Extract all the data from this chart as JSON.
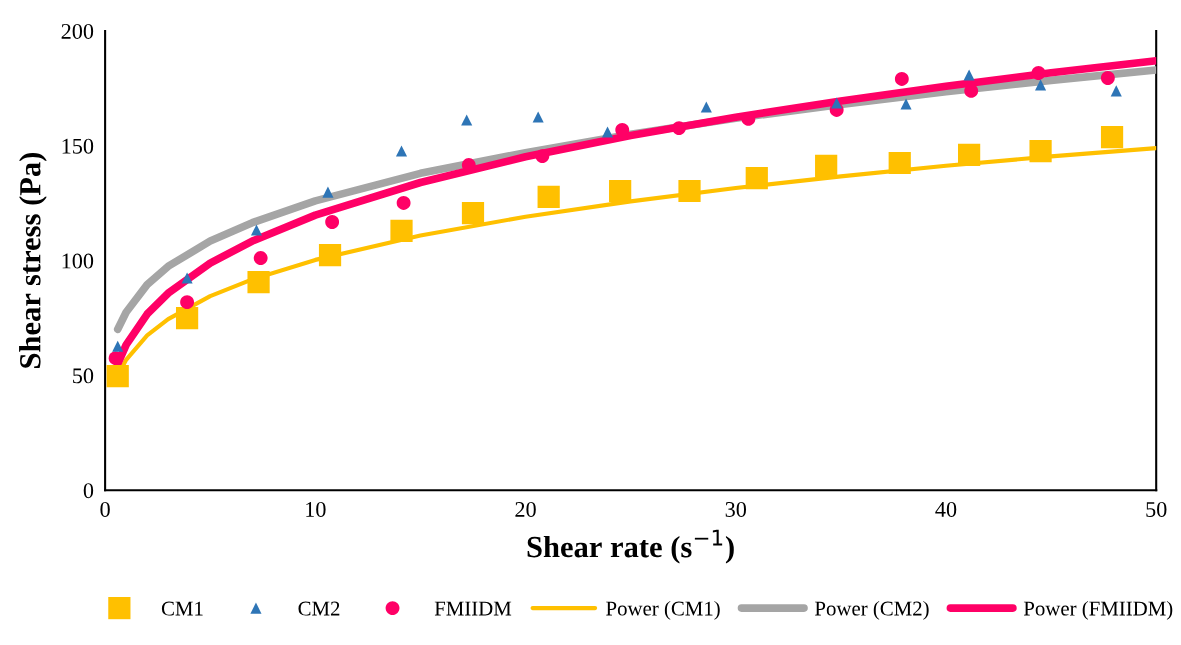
{
  "chart_data": {
    "type": "scatter",
    "xlabel": "Shear rate (s$^{−1}$)",
    "ylabel": "Shear stress (Pa)",
    "xlim": [
      0,
      50
    ],
    "xticks": [
      0,
      10,
      20,
      30,
      40,
      50
    ],
    "ylim": [
      0,
      200
    ],
    "yticks": [
      0,
      50,
      100,
      150,
      200
    ],
    "grid": false,
    "legend": "bottom",
    "series": [
      {
        "name": "CM1",
        "marker": "square",
        "color": "#ffc000",
        "x": [
          0.6,
          3.9,
          7.3,
          10.7,
          14.1,
          17.5,
          21.1,
          24.5,
          27.8,
          31.0,
          34.3,
          37.8,
          41.1,
          44.5,
          47.9
        ],
        "values": [
          49.7,
          74.9,
          90.6,
          102.4,
          112.9,
          120.7,
          127.7,
          130.3,
          130.3,
          135.9,
          141.2,
          142.5,
          146.0,
          147.7,
          153.8
        ]
      },
      {
        "name": "CM2",
        "marker": "triangle",
        "color": "#2e75b6",
        "x": [
          0.6,
          3.9,
          7.2,
          10.6,
          14.1,
          17.2,
          20.6,
          23.9,
          28.6,
          34.8,
          38.1,
          41.1,
          44.5,
          48.1
        ],
        "values": [
          62.7,
          92.4,
          113.3,
          129.8,
          147.7,
          161.2,
          162.5,
          156.0,
          166.9,
          168.6,
          168.2,
          180.8,
          176.5,
          173.9
        ]
      },
      {
        "name": "FMIIDM",
        "marker": "circle",
        "color": "#ff0066",
        "x": [
          0.5,
          3.9,
          7.4,
          10.8,
          14.2,
          17.3,
          20.8,
          24.6,
          27.3,
          30.6,
          34.8,
          37.9,
          41.2,
          44.4,
          47.7
        ],
        "values": [
          57.5,
          81.9,
          101.1,
          116.8,
          125.1,
          141.6,
          145.5,
          156.9,
          157.7,
          161.7,
          165.6,
          179.1,
          173.9,
          181.7,
          179.5
        ]
      },
      {
        "name": "Power (CM1)",
        "type": "line",
        "color": "#ffc000",
        "x": [
          0.6,
          1,
          2,
          3,
          5,
          7,
          10,
          15,
          20,
          25,
          30,
          35,
          40,
          45,
          50
        ],
        "values": [
          50.0,
          56.8,
          67.4,
          74.5,
          84.5,
          91.8,
          100.3,
          110.9,
          119.1,
          125.8,
          131.6,
          136.7,
          141.3,
          145.4,
          149.0
        ]
      },
      {
        "name": "Power (CM2)",
        "type": "line",
        "color": "#a5a5a5",
        "x": [
          0.6,
          1,
          2,
          3,
          5,
          7,
          10,
          15,
          20,
          25,
          30,
          35,
          40,
          45,
          50
        ],
        "values": [
          70.1,
          77.5,
          89.5,
          97.5,
          108.5,
          116.5,
          126.0,
          138.0,
          147.0,
          155.0,
          162.0,
          168.0,
          173.5,
          178.5,
          183.0
        ]
      },
      {
        "name": "Power (FMIIDM)",
        "type": "line",
        "color": "#ff0066",
        "x": [
          0.6,
          1,
          2,
          3,
          5,
          7,
          10,
          15,
          20,
          25,
          30,
          35,
          40,
          45,
          50
        ],
        "values": [
          55.0,
          63.3,
          76.7,
          85.8,
          98.9,
          108.5,
          119.8,
          134.0,
          145.2,
          154.5,
          162.4,
          169.5,
          175.9,
          181.8,
          187.0
        ]
      }
    ]
  }
}
